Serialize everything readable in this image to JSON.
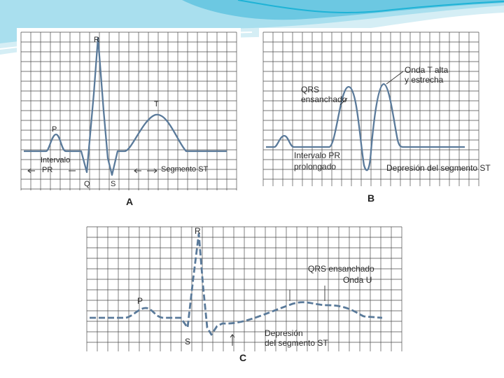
{
  "colors": {
    "accent": "#1eb3d6",
    "grid": "#444444",
    "trace": "#5a7a9a"
  },
  "panel_a": {
    "caption": "A",
    "labels": {
      "r": "R",
      "p": "P",
      "t": "T",
      "q": "Q",
      "s": "S",
      "pr_1": "Intervalo",
      "pr_2": "PR",
      "st_segment": "Segmento ST"
    }
  },
  "panel_b": {
    "caption": "B",
    "labels": {
      "qrs_1": "QRS",
      "qrs_2": "ensanchado",
      "t_1": "Onda T alta",
      "t_2": "y estrecha",
      "pr_1": "Intervalo PR",
      "pr_2": "prolongado",
      "st": "Depresión del segmento ST"
    }
  },
  "panel_c": {
    "caption": "C",
    "labels": {
      "r": "R",
      "p": "P",
      "s": "S",
      "qrs": "QRS ensanchado",
      "u": "Onda U",
      "st_1": "Depresión",
      "st_2": "del segmento ST"
    }
  }
}
